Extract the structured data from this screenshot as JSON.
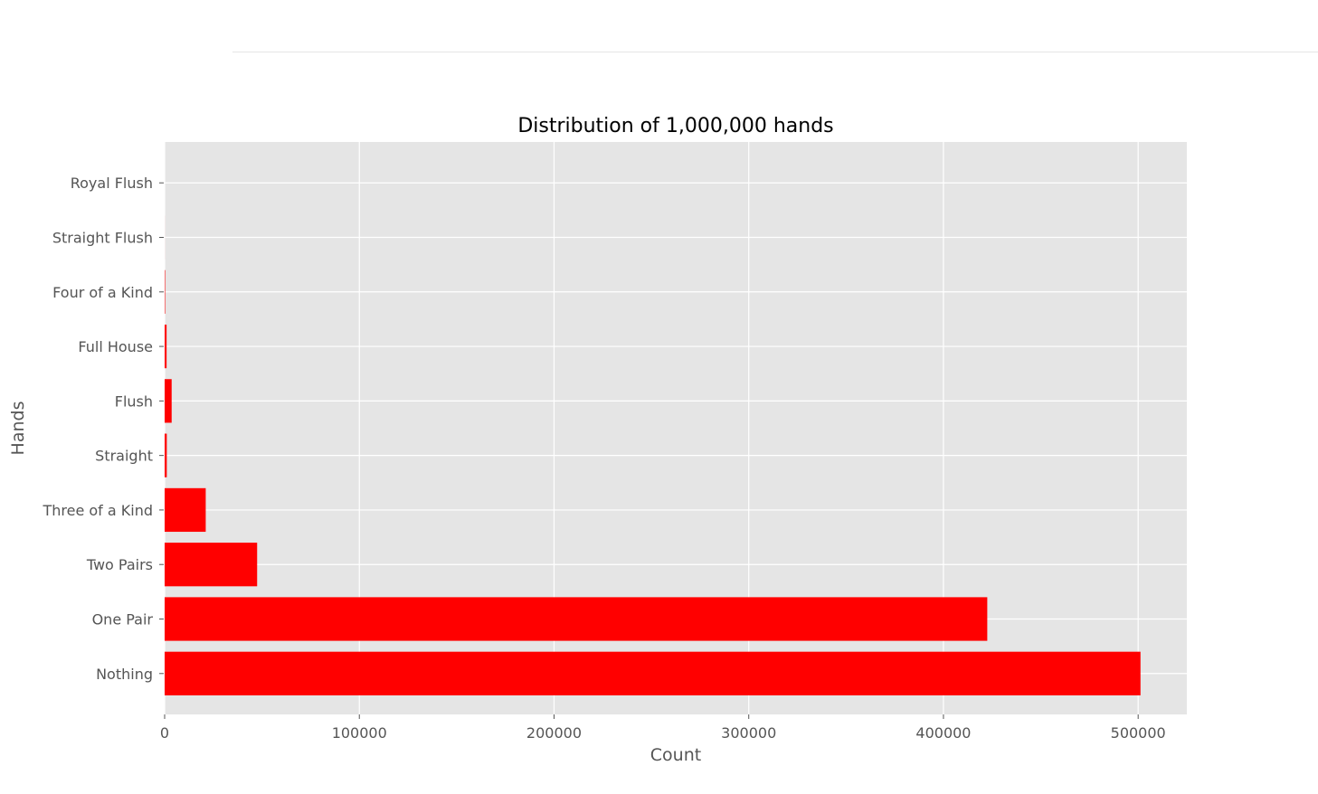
{
  "chart_data": {
    "type": "bar",
    "orientation": "horizontal",
    "title": "Distribution of 1,000,000 hands",
    "xlabel": "Count",
    "ylabel": "Hands",
    "categories": [
      "Nothing",
      "One Pair",
      "Two Pairs",
      "Three of a Kind",
      "Straight",
      "Flush",
      "Full House",
      "Four of a Kind",
      "Straight Flush",
      "Royal Flush"
    ],
    "values": [
      501200,
      422500,
      47500,
      21100,
      1100,
      3600,
      1000,
      240,
      15,
      2
    ],
    "xticks": [
      0,
      100000,
      200000,
      300000,
      400000,
      500000
    ],
    "xlim": [
      0,
      525000
    ],
    "bar_color": "#ff0000",
    "background_color": "#e5e5e5",
    "grid": true
  }
}
